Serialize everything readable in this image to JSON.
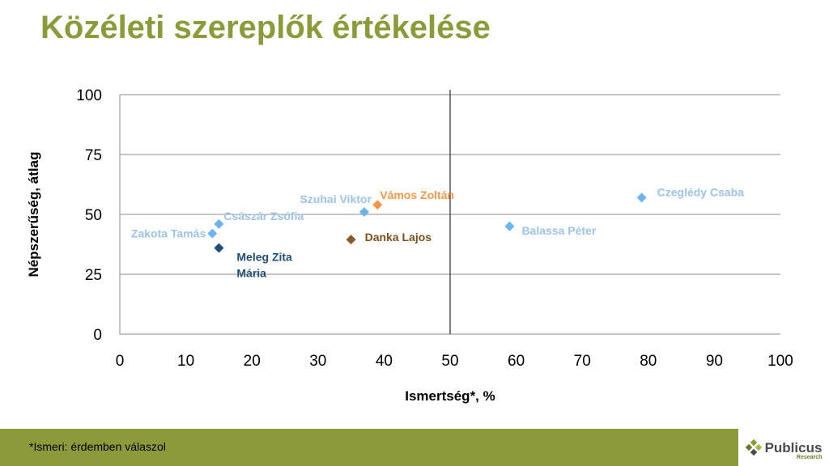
{
  "title": "Közéleti szereplők értékelése",
  "footnote": "*Ismeri: érdemben válaszol",
  "logo": {
    "name": "Publicus",
    "sub": "Research"
  },
  "chart_data": {
    "type": "scatter",
    "title": "Közéleti szereplők értékelése",
    "xlabel": "Ismertség*, %",
    "ylabel": "Népszerűség, átlag",
    "xlim": [
      0,
      100
    ],
    "ylim": [
      0,
      100
    ],
    "x_ticks": [
      0,
      10,
      20,
      30,
      40,
      50,
      60,
      70,
      80,
      90,
      100
    ],
    "y_ticks": [
      0,
      25,
      50,
      75,
      100
    ],
    "grid": "horizontal",
    "reference_line_x": 50,
    "points": [
      {
        "label": "Zakota Tamás",
        "x": 14,
        "y": 42,
        "color": "#6cb4ee"
      },
      {
        "label": "Császár Zsófia",
        "x": 15,
        "y": 46,
        "color": "#6cb4ee"
      },
      {
        "label": "Meleg Zita Mária",
        "x": 15,
        "y": 36,
        "color": "#1f4e79"
      },
      {
        "label": "Szuhai Viktor",
        "x": 37,
        "y": 51,
        "color": "#6cb4ee"
      },
      {
        "label": "Vámos Zoltán",
        "x": 39,
        "y": 54,
        "color": "#f79646"
      },
      {
        "label": "Danka Lajos",
        "x": 35,
        "y": 39.5,
        "color": "#8b5a2b"
      },
      {
        "label": "Balassa Péter",
        "x": 59,
        "y": 45,
        "color": "#6cb4ee"
      },
      {
        "label": "Czeglédy Csaba",
        "x": 79,
        "y": 57,
        "color": "#6cb4ee"
      }
    ],
    "label_colors": {
      "light": "#9dc3e6",
      "dark": "#1f4e79",
      "orange": "#f79646",
      "brown": "#7b5020"
    }
  }
}
